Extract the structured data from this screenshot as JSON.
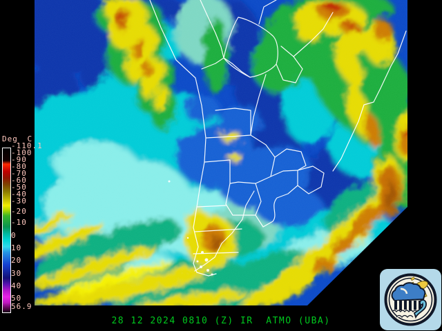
{
  "temperature_scale": {
    "unit_label": "Deg C",
    "tick_labels": [
      "-110.1",
      "-100",
      "-90",
      "-80",
      "-70",
      "-60",
      "-50",
      "-40",
      "-30",
      "-20",
      "-10",
      "0",
      "10",
      "20",
      "30",
      "40",
      "50",
      "56.9"
    ],
    "text_color": "#ffc8be",
    "colorbar_stops": [
      {
        "pos": 0.0,
        "color": "#000000"
      },
      {
        "pos": 0.075,
        "color": "#140000"
      },
      {
        "pos": 0.097,
        "color": "#ff2a00"
      },
      {
        "pos": 0.14,
        "color": "#c00000"
      },
      {
        "pos": 0.181,
        "color": "#901400"
      },
      {
        "pos": 0.223,
        "color": "#7e4600"
      },
      {
        "pos": 0.265,
        "color": "#8c7c00"
      },
      {
        "pos": 0.307,
        "color": "#bcb400"
      },
      {
        "pos": 0.349,
        "color": "#f2ee00"
      },
      {
        "pos": 0.38,
        "color": "#aad400"
      },
      {
        "pos": 0.412,
        "color": "#38b428"
      },
      {
        "pos": 0.479,
        "color": "#0a9450"
      },
      {
        "pos": 0.52,
        "color": "#00b89e"
      },
      {
        "pos": 0.559,
        "color": "#00d4d4"
      },
      {
        "pos": 0.6,
        "color": "#30d8ee"
      },
      {
        "pos": 0.634,
        "color": "#2596e6"
      },
      {
        "pos": 0.71,
        "color": "#1540d2"
      },
      {
        "pos": 0.79,
        "color": "#131078"
      },
      {
        "pos": 0.83,
        "color": "#5c12b4"
      },
      {
        "pos": 0.866,
        "color": "#b414cc"
      },
      {
        "pos": 0.905,
        "color": "#e822e8"
      },
      {
        "pos": 0.941,
        "color": "#c018c0"
      },
      {
        "pos": 0.975,
        "color": "#58064e"
      },
      {
        "pos": 1.0,
        "color": "#140014"
      }
    ]
  },
  "caption": {
    "text": "28 12 2024 0810 (Z) IR  ATMO (UBA)",
    "color": "#00c81e"
  },
  "map_palette": {
    "cold_navy": "#0736ac",
    "cool_blue": "#1560d4",
    "cyan": "#00ccd8",
    "pale_cyan": "#8aeeea",
    "teal_green": "#0cb080",
    "green": "#1cae3c",
    "yellow": "#e8dc00",
    "orange": "#cf7c00",
    "red": "#c02600",
    "border_lines": "#ffffff"
  },
  "logo": {
    "icon": "cloud-rain-sun-wave-icon",
    "background_color": "#b4d9e9",
    "ring_color": "#101828",
    "cloud_color": "#3d7ec6",
    "wave_color": "#6cc2dc",
    "sun_color": "#edc93f"
  }
}
